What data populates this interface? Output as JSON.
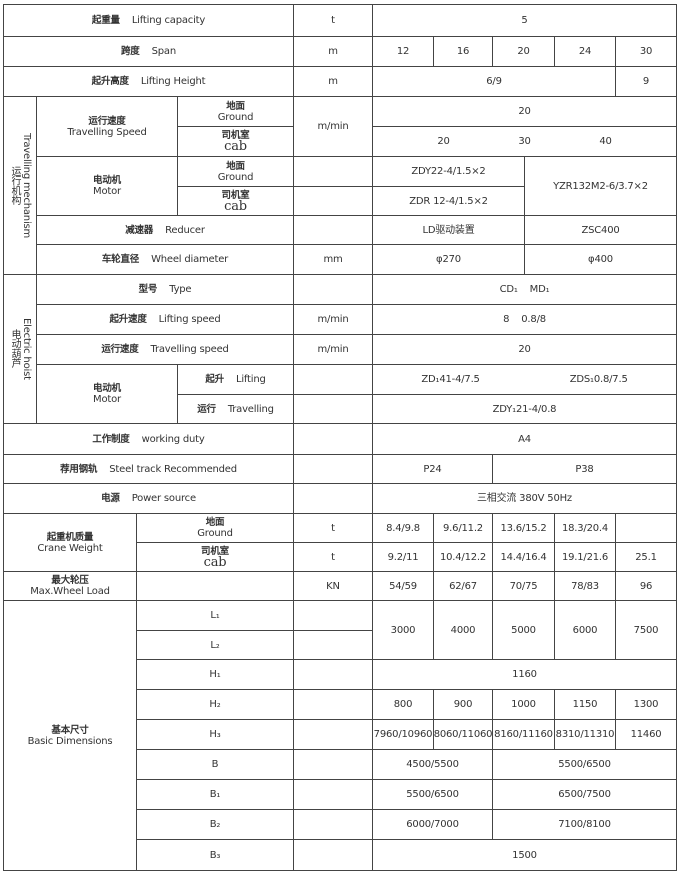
{
  "lifting_capacity": {
    "cn": "起重量",
    "en": "Lifting  capacity",
    "unit": "t",
    "value": "5"
  },
  "span": {
    "cn": "跨度",
    "en": "Span",
    "unit": "m",
    "values": [
      "12",
      "16",
      "20",
      "24",
      "30"
    ]
  },
  "lifting_height": {
    "cn": "起升高度",
    "en": "Lifting  Height",
    "unit": "m",
    "values": [
      "6/9",
      "9"
    ]
  },
  "travelling_mechanism": {
    "side_cn": "运行机构",
    "side_en": "Travelling mechanism",
    "speed": {
      "cn": "运行速度",
      "en": "Travelling Speed",
      "unit": "m/min",
      "ground": {
        "cn": "地面",
        "en": "Ground",
        "value": "20"
      },
      "cab": {
        "cn": "司机室",
        "en": "cab",
        "values": [
          "20",
          "30",
          "40"
        ]
      }
    },
    "motor": {
      "cn": "电动机",
      "en": "Motor",
      "ground": {
        "cn": "地面",
        "en": "Ground",
        "value": "ZDY22-4/1.5×2"
      },
      "cab": {
        "cn": "司机室",
        "en": "cab",
        "value": "ZDR  12-4/1.5×2"
      },
      "large": "YZR132M2-6/3.7×2"
    },
    "reducer": {
      "cn": "减速器",
      "en": "Reducer",
      "values": [
        "LD驱动装置",
        "ZSC400"
      ]
    },
    "wheel": {
      "cn": "车轮直径",
      "en": "Wheel diameter",
      "unit": "mm",
      "values": [
        "φ270",
        "φ400"
      ]
    }
  },
  "electric_hoist": {
    "side_cn": "电动葫芦",
    "side_en": "Electric hoist",
    "type": {
      "cn": "型号",
      "en": "Type",
      "values": [
        "CD₁",
        "MD₁"
      ]
    },
    "lifting_speed": {
      "cn": "起升速度",
      "en": "Lifting speed",
      "unit": "m/min",
      "values": [
        "8",
        "0.8/8"
      ]
    },
    "travelling_speed": {
      "cn": "运行速度",
      "en": "Travelling speed",
      "unit": "m/min",
      "value": "20"
    },
    "motor": {
      "cn": "电动机",
      "en": "Motor",
      "lifting": {
        "cn": "起升",
        "en": "Lifting",
        "values": [
          "ZD₁41-4/7.5",
          "ZDS₁0.8/7.5"
        ]
      },
      "travelling": {
        "cn": "运行",
        "en": "Travelling",
        "value": "ZDY₁21-4/0.8"
      }
    }
  },
  "working_duty": {
    "cn": "工作制度",
    "en": "working  duty",
    "value": "A4"
  },
  "steel_track": {
    "cn": "荐用钢轨",
    "en": "Steel track Recommended",
    "values": [
      "P24",
      "P38"
    ]
  },
  "power": {
    "cn": "电源",
    "en": "Power source",
    "value": "三相交流  380V  50Hz"
  },
  "crane_weight": {
    "cn": "起重机质量",
    "en": "Crane Weight",
    "ground": {
      "cn": "地面",
      "en": "Ground",
      "unit": "t",
      "values": [
        "8.4/9.8",
        "9.6/11.2",
        "13.6/15.2",
        "18.3/20.4",
        ""
      ]
    },
    "cab": {
      "cn": "司机室",
      "en": "cab",
      "unit": "t",
      "values": [
        "9.2/11",
        "10.4/12.2",
        "14.4/16.4",
        "19.1/21.6",
        "25.1"
      ]
    }
  },
  "wheel_load": {
    "cn": "最大轮压",
    "en": "Max.Wheel Load",
    "unit": "KN",
    "values": [
      "54/59",
      "62/67",
      "70/75",
      "78/83",
      "96"
    ]
  },
  "basic_dimensions": {
    "cn": "基本尺寸",
    "en": "Basic  Dimensions",
    "labels": {
      "L1": "L₁",
      "L2": "L₂",
      "H1": "H₁",
      "H2": "H₂",
      "H3": "H₃",
      "B": "B",
      "B1": "B₁",
      "B2": "B₂",
      "B3": "B₃"
    },
    "L": [
      "3000",
      "4000",
      "5000",
      "6000",
      "7500"
    ],
    "H1": "1160",
    "H2": [
      "800",
      "900",
      "1000",
      "1150",
      "1300"
    ],
    "H3": [
      "7960/10960",
      "8060/11060",
      "8160/11160",
      "8310/11310",
      "11460"
    ],
    "B": [
      "4500/5500",
      "5500/6500"
    ],
    "B1": [
      "5500/6500",
      "6500/7500"
    ],
    "B2": [
      "6000/7000",
      "7100/8100"
    ],
    "B3": "1500"
  }
}
